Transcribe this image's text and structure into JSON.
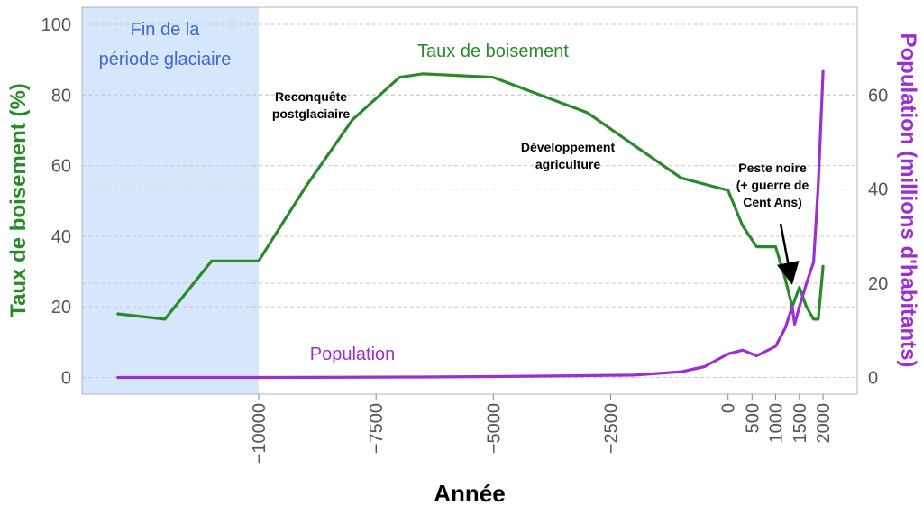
{
  "chart_data": {
    "type": "line",
    "xlabel": "Année",
    "ylabel_left": "Taux de boisement (%)",
    "ylabel_right": "Population (millions d'habitants)",
    "ylim_left": [
      -7,
      105
    ],
    "ylim_right": [
      -5,
      75
    ],
    "xlim": [
      -14500,
      2400
    ],
    "x_scale": "piecewise: years before 0 compressed, 0 to 2000 expanded",
    "grid": "horizontal dashed",
    "x_ticks": [
      -10000,
      -7500,
      -5000,
      -2500,
      0,
      500,
      1000,
      1500,
      2000
    ],
    "x_tick_labels": [
      "−10000",
      "−7500",
      "−5000",
      "−2500",
      "0",
      "500",
      "1000",
      "1500",
      "2000"
    ],
    "y_ticks_left": [
      0,
      20,
      40,
      60,
      80,
      100
    ],
    "y_ticks_right": [
      0,
      20,
      40,
      60
    ],
    "colors": {
      "forest": "#2a8a2a",
      "population": "#9b30d0",
      "glacial_band": "#d6e6fb",
      "glacial_text": "#3f68d0",
      "axis_text": "#555555"
    },
    "series": [
      {
        "name": "Taux de boisement",
        "axis": "left",
        "x": [
          -13000,
          -12000,
          -11000,
          -10000,
          -9000,
          -8000,
          -7000,
          -6500,
          -5000,
          -3000,
          -1000,
          0,
          300,
          600,
          1000,
          1200,
          1350,
          1500,
          1650,
          1800,
          1900,
          2000
        ],
        "y": [
          18,
          16.5,
          33,
          33,
          54,
          73,
          85,
          86,
          85,
          75,
          56.5,
          53,
          43,
          37,
          37,
          28,
          20,
          25.5,
          20,
          16.5,
          16.5,
          31.5
        ]
      },
      {
        "name": "Population",
        "axis": "right",
        "x": [
          -13000,
          -10000,
          -6500,
          -5000,
          -2000,
          -1000,
          -500,
          0,
          300,
          600,
          1000,
          1200,
          1350,
          1400,
          1500,
          1650,
          1800,
          1900,
          2000
        ],
        "y": [
          0,
          0,
          0.1,
          0.2,
          0.5,
          1.2,
          2.3,
          5,
          5.8,
          4.6,
          6.6,
          10.5,
          15,
          11.3,
          15,
          20,
          24.5,
          41,
          65
        ]
      }
    ],
    "shaded_region": {
      "x_start": -14500,
      "x_end": -10000,
      "label_line1": "Fin de la",
      "label_line2": "période glaciaire"
    },
    "series_labels": {
      "forest": "Taux de boisement",
      "population": "Population"
    },
    "annotations": [
      {
        "id": "reconquete",
        "lines": [
          "Reconquête",
          "postglaciaire"
        ]
      },
      {
        "id": "developpement",
        "lines": [
          "Développement",
          "agriculture"
        ]
      },
      {
        "id": "peste",
        "lines": [
          "Peste noire",
          "(+ guerre de",
          "Cent Ans)"
        ]
      }
    ]
  }
}
